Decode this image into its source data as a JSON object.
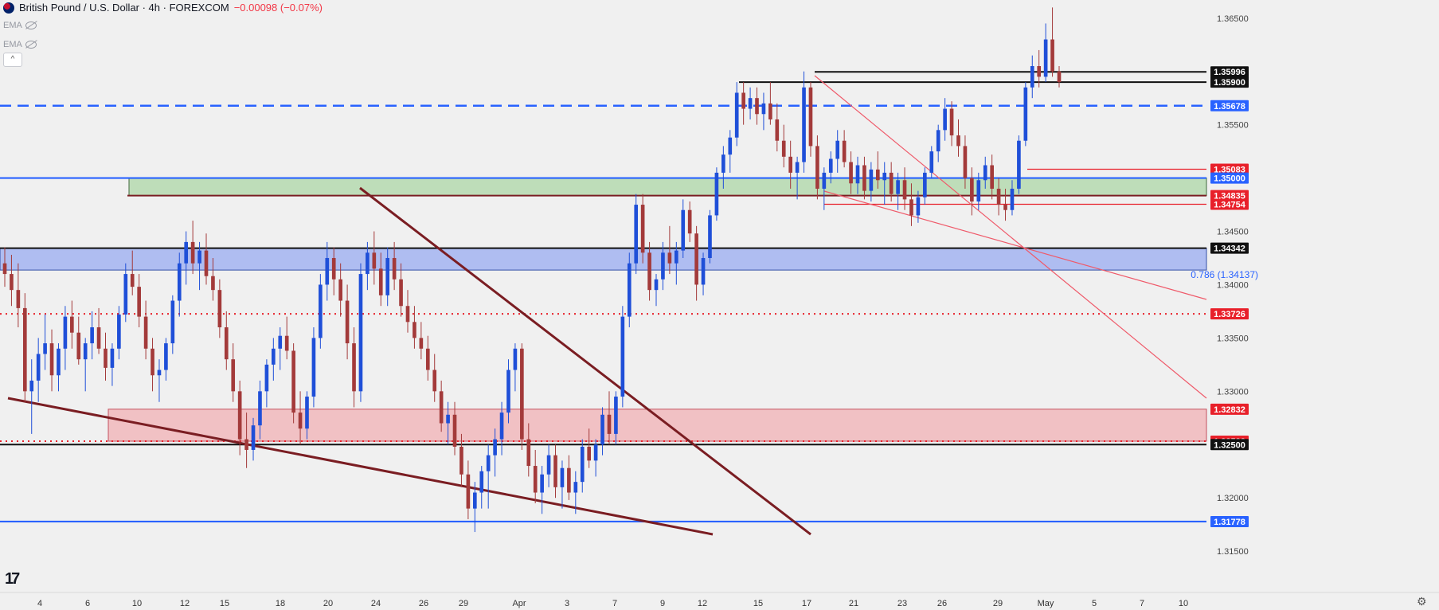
{
  "header": {
    "symbol_title": "British Pound / U.S. Dollar · 4h · FOREXCOM",
    "change": "−0.00098 (−0.07%)",
    "indicators": [
      "EMA",
      "EMA"
    ]
  },
  "colors": {
    "up": "#1f4fd8",
    "down": "#a33a3a",
    "green_zone": "#b9dcb4",
    "blue_zone": "#a8b8f2",
    "red_zone": "#f2bcc0",
    "dashed_blue": "#2962ff",
    "dotted_red": "#e8202a",
    "trendline_dark": "#7a1d22",
    "trendline_light": "#ef5a6a"
  },
  "chart_data": {
    "type": "candlestick",
    "timeframe": "4h",
    "x_ticks": [
      "4",
      "6",
      "10",
      "12",
      "15",
      "18",
      "20",
      "24",
      "26",
      "29",
      "Apr",
      "3",
      "7",
      "9",
      "12",
      "15",
      "17",
      "21",
      "23",
      "26",
      "29",
      "May",
      "5",
      "7",
      "10"
    ],
    "y_ticks": [
      "1.36500",
      "1.35500",
      "1.34500",
      "1.34000",
      "1.33500",
      "1.33000",
      "1.32000",
      "1.31500"
    ],
    "ylim": [
      1.3118,
      1.3667
    ],
    "levels": [
      {
        "price": "1.35996",
        "label": "1.35996",
        "style": "solid-black"
      },
      {
        "price": "1.35900",
        "label": "1.35900",
        "style": "solid-black"
      },
      {
        "price": "1.35678",
        "label": "1.35678",
        "style": "dashed-blue"
      },
      {
        "price": "1.35083",
        "label": "1.35083",
        "style": "solid-red"
      },
      {
        "price": "1.35000",
        "label": "1.35000",
        "style": "solid-blue"
      },
      {
        "price": "1.34835",
        "label": "1.34835",
        "style": "solid-dark"
      },
      {
        "price": "1.34754",
        "label": "1.34754",
        "style": "solid-red"
      },
      {
        "price": "1.34342",
        "label": "1.34342",
        "style": "solid-black"
      },
      {
        "price": "1.33726",
        "label": "1.33726",
        "style": "dotted-red"
      },
      {
        "price": "1.32832",
        "label": "1.32832",
        "style": "zone-red"
      },
      {
        "price": "1.32532",
        "label": "1.32532",
        "style": "dotted-red"
      },
      {
        "price": "1.32500",
        "label": "1.32500",
        "style": "solid-black"
      },
      {
        "price": "1.31778",
        "label": "1.31778",
        "style": "solid-blue"
      }
    ],
    "zones": [
      {
        "name": "green",
        "top": 1.35,
        "bottom": 1.34835
      },
      {
        "name": "blue",
        "top": 1.34342,
        "bottom": 1.34137
      },
      {
        "name": "red",
        "top": 1.32832,
        "bottom": 1.32532
      }
    ],
    "fib_label": "0.786 (1.34137)",
    "candles_ohlc": [
      [
        1.342,
        1.3435,
        1.3398,
        1.341
      ],
      [
        1.341,
        1.3428,
        1.338,
        1.3395
      ],
      [
        1.3395,
        1.342,
        1.336,
        1.3378
      ],
      [
        1.3378,
        1.3392,
        1.329,
        1.33
      ],
      [
        1.33,
        1.333,
        1.326,
        1.331
      ],
      [
        1.331,
        1.335,
        1.329,
        1.3335
      ],
      [
        1.3335,
        1.3372,
        1.332,
        1.3345
      ],
      [
        1.3345,
        1.3358,
        1.33,
        1.3315
      ],
      [
        1.3315,
        1.3345,
        1.33,
        1.334
      ],
      [
        1.334,
        1.338,
        1.332,
        1.337
      ],
      [
        1.337,
        1.3385,
        1.334,
        1.3355
      ],
      [
        1.3355,
        1.337,
        1.3325,
        1.333
      ],
      [
        1.333,
        1.335,
        1.33,
        1.3345
      ],
      [
        1.3345,
        1.3375,
        1.333,
        1.336
      ],
      [
        1.336,
        1.3378,
        1.3335,
        1.334
      ],
      [
        1.334,
        1.3355,
        1.331,
        1.3322
      ],
      [
        1.3322,
        1.3345,
        1.3305,
        1.334
      ],
      [
        1.334,
        1.338,
        1.333,
        1.3372
      ],
      [
        1.3372,
        1.342,
        1.3365,
        1.341
      ],
      [
        1.341,
        1.3432,
        1.339,
        1.3398
      ],
      [
        1.3398,
        1.341,
        1.336,
        1.337
      ],
      [
        1.337,
        1.3385,
        1.333,
        1.334
      ],
      [
        1.334,
        1.335,
        1.33,
        1.3315
      ],
      [
        1.3315,
        1.333,
        1.329,
        1.332
      ],
      [
        1.332,
        1.335,
        1.331,
        1.3345
      ],
      [
        1.3345,
        1.339,
        1.3335,
        1.3385
      ],
      [
        1.3385,
        1.343,
        1.337,
        1.342
      ],
      [
        1.342,
        1.345,
        1.34,
        1.344
      ],
      [
        1.344,
        1.346,
        1.341,
        1.342
      ],
      [
        1.342,
        1.344,
        1.3395,
        1.3432
      ],
      [
        1.3432,
        1.3448,
        1.34,
        1.3408
      ],
      [
        1.3408,
        1.3425,
        1.3385,
        1.3395
      ],
      [
        1.3395,
        1.3405,
        1.335,
        1.336
      ],
      [
        1.336,
        1.3375,
        1.332,
        1.333
      ],
      [
        1.333,
        1.3345,
        1.329,
        1.33
      ],
      [
        1.33,
        1.331,
        1.324,
        1.3255
      ],
      [
        1.3255,
        1.328,
        1.3228,
        1.3245
      ],
      [
        1.3245,
        1.3275,
        1.3235,
        1.3268
      ],
      [
        1.3268,
        1.331,
        1.3255,
        1.33
      ],
      [
        1.33,
        1.333,
        1.3285,
        1.3325
      ],
      [
        1.3325,
        1.335,
        1.331,
        1.334
      ],
      [
        1.334,
        1.336,
        1.332,
        1.3352
      ],
      [
        1.3352,
        1.337,
        1.333,
        1.3338
      ],
      [
        1.3338,
        1.3345,
        1.327,
        1.328
      ],
      [
        1.328,
        1.33,
        1.325,
        1.3265
      ],
      [
        1.3265,
        1.33,
        1.3255,
        1.3295
      ],
      [
        1.3295,
        1.336,
        1.3285,
        1.335
      ],
      [
        1.335,
        1.341,
        1.334,
        1.34
      ],
      [
        1.34,
        1.344,
        1.3385,
        1.3425
      ],
      [
        1.3425,
        1.3435,
        1.339,
        1.3405
      ],
      [
        1.3405,
        1.342,
        1.337,
        1.3385
      ],
      [
        1.3385,
        1.34,
        1.333,
        1.3345
      ],
      [
        1.3345,
        1.336,
        1.3285,
        1.33
      ],
      [
        1.33,
        1.342,
        1.329,
        1.341
      ],
      [
        1.341,
        1.344,
        1.3395,
        1.343
      ],
      [
        1.343,
        1.345,
        1.34,
        1.3415
      ],
      [
        1.3415,
        1.343,
        1.338,
        1.339
      ],
      [
        1.339,
        1.3435,
        1.338,
        1.3425
      ],
      [
        1.3425,
        1.344,
        1.3395,
        1.3405
      ],
      [
        1.3405,
        1.342,
        1.337,
        1.338
      ],
      [
        1.338,
        1.3395,
        1.3355,
        1.3365
      ],
      [
        1.3365,
        1.338,
        1.334,
        1.335
      ],
      [
        1.335,
        1.3365,
        1.333,
        1.334
      ],
      [
        1.334,
        1.3352,
        1.331,
        1.332
      ],
      [
        1.332,
        1.3335,
        1.329,
        1.33
      ],
      [
        1.33,
        1.331,
        1.3262,
        1.327
      ],
      [
        1.327,
        1.329,
        1.325,
        1.3278
      ],
      [
        1.3278,
        1.329,
        1.324,
        1.3248
      ],
      [
        1.3248,
        1.326,
        1.321,
        1.3222
      ],
      [
        1.3222,
        1.3235,
        1.318,
        1.319
      ],
      [
        1.319,
        1.3215,
        1.3168,
        1.3205
      ],
      [
        1.3205,
        1.323,
        1.319,
        1.3225
      ],
      [
        1.3225,
        1.325,
        1.319,
        1.324
      ],
      [
        1.324,
        1.3265,
        1.322,
        1.3255
      ],
      [
        1.3255,
        1.329,
        1.324,
        1.328
      ],
      [
        1.328,
        1.333,
        1.327,
        1.332
      ],
      [
        1.332,
        1.3345,
        1.33,
        1.334
      ],
      [
        1.334,
        1.3345,
        1.3245,
        1.3255
      ],
      [
        1.3255,
        1.327,
        1.322,
        1.323
      ],
      [
        1.323,
        1.3245,
        1.3195,
        1.3205
      ],
      [
        1.3205,
        1.323,
        1.3185,
        1.3222
      ],
      [
        1.3222,
        1.325,
        1.321,
        1.324
      ],
      [
        1.324,
        1.325,
        1.32,
        1.321
      ],
      [
        1.321,
        1.3235,
        1.319,
        1.3228
      ],
      [
        1.3228,
        1.324,
        1.3198,
        1.3205
      ],
      [
        1.3205,
        1.3225,
        1.3185,
        1.3215
      ],
      [
        1.3215,
        1.3255,
        1.3205,
        1.3248
      ],
      [
        1.3248,
        1.3265,
        1.3228,
        1.3235
      ],
      [
        1.3235,
        1.3255,
        1.322,
        1.325
      ],
      [
        1.325,
        1.3285,
        1.324,
        1.3278
      ],
      [
        1.3278,
        1.33,
        1.325,
        1.326
      ],
      [
        1.326,
        1.33,
        1.325,
        1.3295
      ],
      [
        1.3295,
        1.338,
        1.3285,
        1.337
      ],
      [
        1.337,
        1.343,
        1.336,
        1.342
      ],
      [
        1.342,
        1.3485,
        1.341,
        1.3475
      ],
      [
        1.3475,
        1.3485,
        1.342,
        1.343
      ],
      [
        1.343,
        1.344,
        1.3385,
        1.3395
      ],
      [
        1.3395,
        1.341,
        1.338,
        1.3405
      ],
      [
        1.3405,
        1.344,
        1.3395,
        1.343
      ],
      [
        1.343,
        1.3455,
        1.341,
        1.342
      ],
      [
        1.342,
        1.344,
        1.34,
        1.3432
      ],
      [
        1.3432,
        1.348,
        1.3425,
        1.347
      ],
      [
        1.347,
        1.3478,
        1.344,
        1.3448
      ],
      [
        1.3448,
        1.3455,
        1.3385,
        1.34
      ],
      [
        1.34,
        1.343,
        1.339,
        1.3425
      ],
      [
        1.3425,
        1.347,
        1.342,
        1.3465
      ],
      [
        1.3465,
        1.351,
        1.346,
        1.3505
      ],
      [
        1.3505,
        1.353,
        1.349,
        1.3522
      ],
      [
        1.3522,
        1.3545,
        1.3505,
        1.3538
      ],
      [
        1.3538,
        1.359,
        1.353,
        1.358
      ],
      [
        1.358,
        1.359,
        1.355,
        1.3565
      ],
      [
        1.3565,
        1.3585,
        1.3555,
        1.3575
      ],
      [
        1.3575,
        1.3585,
        1.355,
        1.356
      ],
      [
        1.356,
        1.358,
        1.3545,
        1.357
      ],
      [
        1.357,
        1.359,
        1.355,
        1.3555
      ],
      [
        1.3555,
        1.357,
        1.3525,
        1.3535
      ],
      [
        1.3535,
        1.355,
        1.351,
        1.352
      ],
      [
        1.352,
        1.3535,
        1.349,
        1.3505
      ],
      [
        1.3505,
        1.352,
        1.348,
        1.3515
      ],
      [
        1.3515,
        1.36,
        1.3505,
        1.3585
      ],
      [
        1.3585,
        1.359,
        1.352,
        1.353
      ],
      [
        1.353,
        1.354,
        1.348,
        1.349
      ],
      [
        1.349,
        1.351,
        1.347,
        1.3505
      ],
      [
        1.3505,
        1.3525,
        1.3495,
        1.3518
      ],
      [
        1.3518,
        1.3545,
        1.3505,
        1.3535
      ],
      [
        1.3535,
        1.3545,
        1.351,
        1.3515
      ],
      [
        1.3515,
        1.3525,
        1.3485,
        1.3495
      ],
      [
        1.3495,
        1.352,
        1.3485,
        1.3512
      ],
      [
        1.3512,
        1.352,
        1.348,
        1.3488
      ],
      [
        1.3488,
        1.3515,
        1.3478,
        1.3508
      ],
      [
        1.3508,
        1.3525,
        1.349,
        1.3498
      ],
      [
        1.3498,
        1.3515,
        1.3475,
        1.3505
      ],
      [
        1.3505,
        1.3515,
        1.3478,
        1.3485
      ],
      [
        1.3485,
        1.3505,
        1.347,
        1.3498
      ],
      [
        1.3498,
        1.351,
        1.347,
        1.348
      ],
      [
        1.348,
        1.3495,
        1.3455,
        1.3465
      ],
      [
        1.3465,
        1.3488,
        1.3458,
        1.3482
      ],
      [
        1.3482,
        1.351,
        1.3475,
        1.3505
      ],
      [
        1.3505,
        1.353,
        1.35,
        1.3525
      ],
      [
        1.3525,
        1.355,
        1.3515,
        1.3545
      ],
      [
        1.3545,
        1.3575,
        1.3535,
        1.3565
      ],
      [
        1.3565,
        1.3572,
        1.353,
        1.354
      ],
      [
        1.354,
        1.3555,
        1.352,
        1.353
      ],
      [
        1.353,
        1.354,
        1.349,
        1.35
      ],
      [
        1.35,
        1.351,
        1.3465,
        1.3478
      ],
      [
        1.3478,
        1.3505,
        1.347,
        1.3498
      ],
      [
        1.3498,
        1.352,
        1.349,
        1.3512
      ],
      [
        1.3512,
        1.3522,
        1.348,
        1.349
      ],
      [
        1.349,
        1.35,
        1.3465,
        1.3475
      ],
      [
        1.3475,
        1.349,
        1.346,
        1.347
      ],
      [
        1.347,
        1.3498,
        1.3465,
        1.349
      ],
      [
        1.349,
        1.354,
        1.3485,
        1.3535
      ],
      [
        1.3535,
        1.359,
        1.353,
        1.3585
      ],
      [
        1.3585,
        1.3615,
        1.3575,
        1.3605
      ],
      [
        1.3605,
        1.362,
        1.3585,
        1.3595
      ],
      [
        1.3595,
        1.3645,
        1.359,
        1.363
      ],
      [
        1.363,
        1.366,
        1.3595,
        1.36
      ],
      [
        1.36,
        1.3605,
        1.3585,
        1.359
      ]
    ]
  }
}
